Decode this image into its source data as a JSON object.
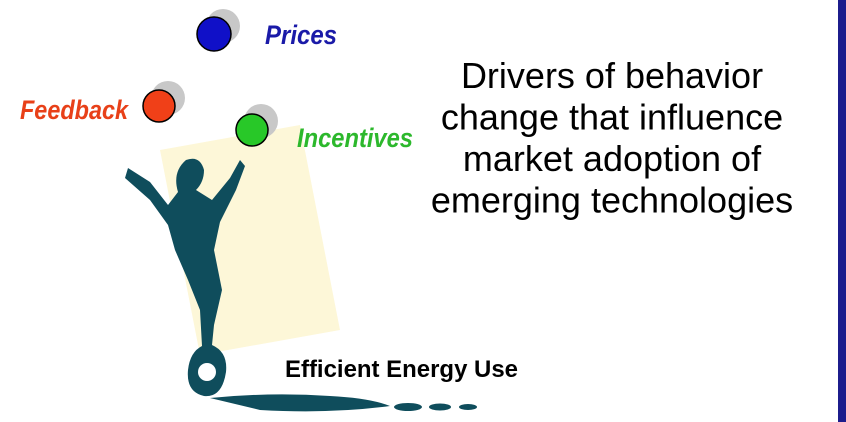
{
  "labels": {
    "prices": "Prices",
    "feedback": "Feedback",
    "incentives": "Incentives"
  },
  "heading": [
    "Drivers of behavior",
    "change that influence",
    "market adoption of",
    "emerging technologies"
  ],
  "caption": "Efficient Energy Use"
}
